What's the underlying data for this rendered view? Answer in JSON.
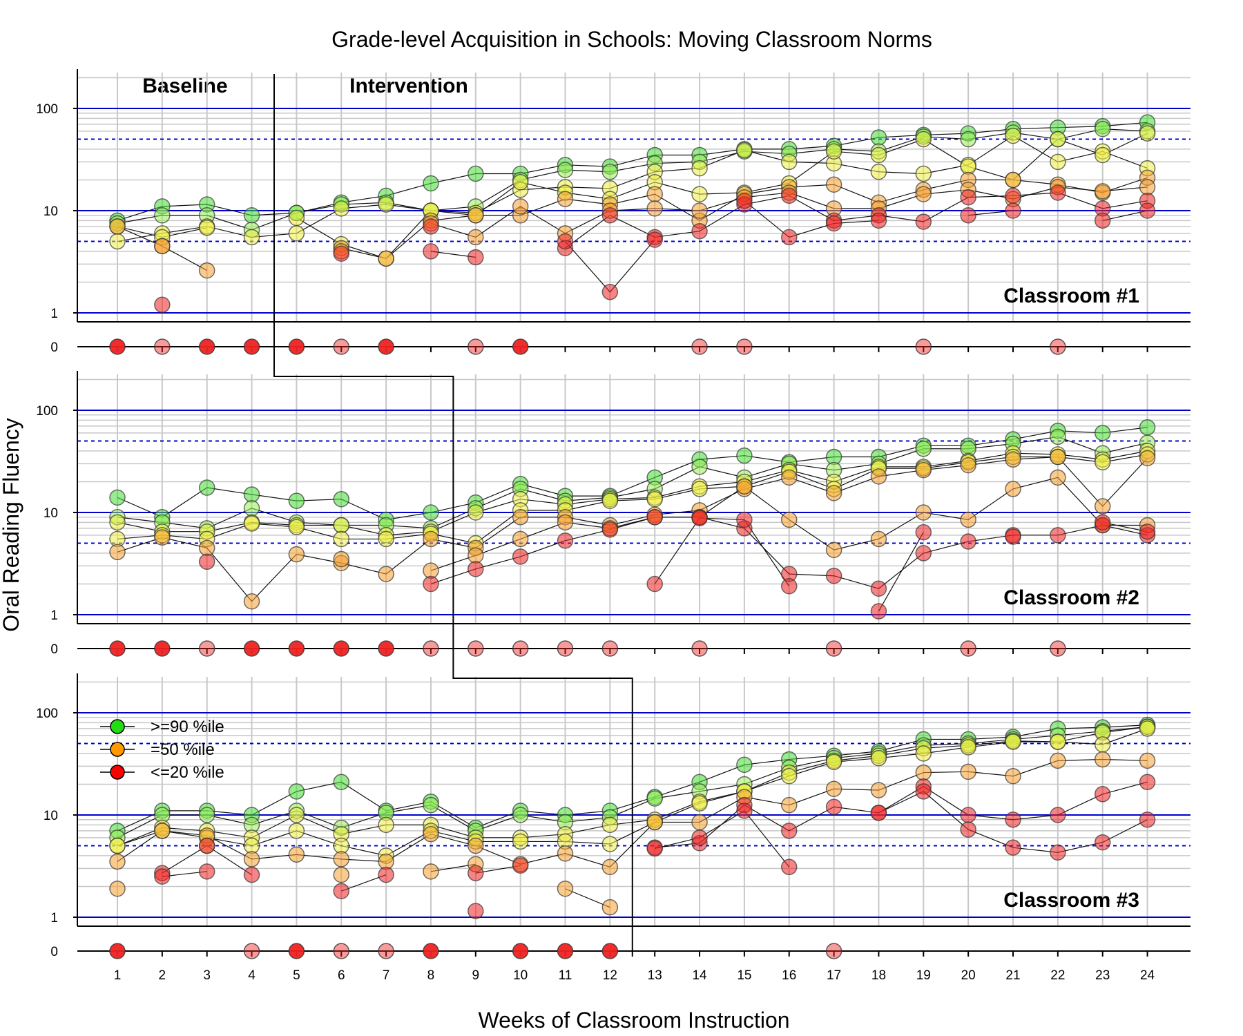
{
  "chart_data": {
    "type": "scatter",
    "title": "Grade-level Acquisition in Schools: Moving Classroom Norms",
    "xlabel": "Weeks of Classroom Instruction",
    "ylabel": "Oral Reading Fluency",
    "y_scale": "log",
    "yticks": [
      "100",
      "10",
      "1"
    ],
    "zero_label": "0",
    "x_ticks": [
      1,
      2,
      3,
      4,
      5,
      6,
      7,
      8,
      9,
      10,
      11,
      12,
      13,
      14,
      15,
      16,
      17,
      18,
      19,
      20,
      21,
      22,
      23,
      24
    ],
    "phase_labels": {
      "baseline": "Baseline",
      "intervention": "Intervention"
    },
    "reference_lines_solid": [
      1,
      10,
      100
    ],
    "reference_lines_dashed": [
      5,
      50
    ],
    "colors": {
      "green": "#44dd33",
      "lightgreen": "#99ee55",
      "yellow": "#eeee44",
      "orange": "#f5a030",
      "red": "#ee2222",
      "reference_line": "#0000cc",
      "grid": "#c8c8c8"
    },
    "legend": {
      "position": "upper-left of Classroom #3",
      "entries": [
        {
          "label": ">=90 %ile",
          "color": "#22dd11"
        },
        {
          "label": "=50 %ile",
          "color": "#ff9900"
        },
        {
          "label": "<=20 %ile",
          "color": "#ff0000"
        }
      ]
    },
    "panels": [
      {
        "label": "Classroom #1",
        "phase_change_after_week": 4.5,
        "series": [
          {
            "color": "green",
            "values": [
              8,
              11,
              11.5,
              9,
              9.5,
              12,
              14,
              18.5,
              23,
              23,
              28,
              27,
              35,
              35,
              40,
              40,
              43,
              52,
              55,
              57,
              63,
              65,
              67,
              73
            ]
          },
          {
            "color": "lightgreen",
            "values": [
              7.5,
              9,
              9,
              6.5,
              9.5,
              11.5,
              12,
              10,
              11,
              20,
              25,
              24,
              29,
              30,
              38,
              36,
              40,
              38,
              53,
              50,
              58,
              50,
              63,
              60
            ]
          },
          {
            "color": "yellow",
            "values": [
              5,
              6,
              7,
              5.5,
              6,
              10.5,
              11.5,
              10,
              9.5,
              16,
              17,
              16.5,
              24,
              26,
              39,
              30,
              29,
              24,
              23,
              28,
              54,
              30,
              38,
              26
            ]
          },
          {
            "color": "yellow",
            "values": [
              7,
              5.5,
              6.8,
              null,
              8.5,
              4.7,
              3.4,
              10,
              9,
              19,
              15,
              13,
              19,
              14.5,
              15,
              18.5,
              38,
              35,
              50,
              27,
              20,
              50,
              35,
              57
            ]
          },
          {
            "color": "orange",
            "values": [
              7,
              4.5,
              2.6,
              null,
              null,
              4.3,
              3.4,
              8,
              9,
              9,
              13,
              11.5,
              14.5,
              8,
              14.5,
              17,
              18,
              12,
              16,
              20,
              20,
              18,
              15,
              21
            ]
          },
          {
            "color": "orange",
            "values": [
              null,
              4.5,
              null,
              null,
              null,
              4,
              null,
              7.5,
              5.5,
              11,
              6,
              10,
              10.5,
              10,
              13.5,
              15,
              10.5,
              10.5,
              14.5,
              16,
              13,
              17,
              15.5,
              17
            ]
          },
          {
            "color": "red",
            "values": [
              null,
              1.2,
              null,
              null,
              null,
              3.8,
              null,
              4,
              3.5,
              null,
              4.3,
              9,
              5.5,
              6.3,
              11.5,
              14,
              8,
              9,
              7.8,
              13.5,
              14,
              15,
              10.5,
              12.5
            ]
          },
          {
            "color": "red",
            "values": [
              null,
              null,
              null,
              null,
              null,
              null,
              null,
              7,
              null,
              null,
              5,
              1.6,
              5.2,
              null,
              12.5,
              5.5,
              7.5,
              8,
              null,
              9,
              10,
              null,
              8,
              10
            ]
          }
        ],
        "zero_points": [
          {
            "week": 1,
            "strong": true
          },
          {
            "week": 2,
            "strong": false
          },
          {
            "week": 3,
            "strong": true
          },
          {
            "week": 4,
            "strong": true
          },
          {
            "week": 5,
            "strong": true
          },
          {
            "week": 6,
            "strong": false
          },
          {
            "week": 7,
            "strong": true
          },
          {
            "week": 9,
            "strong": false
          },
          {
            "week": 10,
            "strong": true
          },
          {
            "week": 14,
            "strong": false
          },
          {
            "week": 15,
            "strong": false
          },
          {
            "week": 19,
            "strong": false
          },
          {
            "week": 22,
            "strong": false
          }
        ]
      },
      {
        "label": "Classroom #2",
        "phase_change_after_week": 8.5,
        "series": [
          {
            "color": "green",
            "values": [
              14,
              9,
              17.5,
              15,
              13,
              13.5,
              8.5,
              10,
              12.5,
              19,
              14.5,
              14.5,
              22,
              33,
              36,
              31,
              35,
              35,
              45,
              45,
              52,
              63,
              60,
              68
            ]
          },
          {
            "color": "lightgreen",
            "values": [
              9,
              8,
              7,
              11,
              8,
              7.5,
              7.5,
              7,
              11,
              17,
              13,
              14,
              17,
              28,
              22,
              30,
              26,
              30,
              42,
              42,
              47,
              55,
              38,
              48
            ]
          },
          {
            "color": "yellow",
            "values": [
              8,
              6.5,
              6.5,
              8,
              7.5,
              7.5,
              6,
              6.5,
              10,
              13.5,
              12,
              13.5,
              14,
              18,
              20,
              26,
              20,
              28,
              28,
              32,
              38,
              37,
              33,
              40
            ]
          },
          {
            "color": "yellow",
            "values": [
              5.5,
              6,
              5.5,
              7.8,
              7.2,
              5.5,
              5.5,
              6.2,
              5,
              10.5,
              10.5,
              13,
              13.5,
              17,
              18,
              25,
              17,
              27,
              27,
              31,
              35,
              35,
              31,
              37
            ]
          },
          {
            "color": "orange",
            "values": [
              4.1,
              5.7,
              4.5,
              1.35,
              3.9,
              3.2,
              2.5,
              5.5,
              4.5,
              9,
              9,
              7.5,
              9.5,
              10.5,
              17,
              22,
              15.5,
              22.5,
              26,
              29,
              33,
              35,
              11.5,
              34
            ]
          },
          {
            "color": "orange",
            "values": [
              null,
              null,
              null,
              null,
              null,
              3.5,
              null,
              2.7,
              3.8,
              5.5,
              8,
              7,
              9,
              9,
              18,
              8.5,
              4.3,
              5.5,
              10,
              8.5,
              17,
              22,
              7.5,
              7.5
            ]
          },
          {
            "color": "red",
            "values": [
              null,
              null,
              3.3,
              null,
              null,
              null,
              null,
              2,
              2.8,
              3.7,
              5.3,
              6.8,
              9,
              9,
              7,
              2.5,
              2.4,
              1.8,
              4,
              5.2,
              6,
              6,
              7.5,
              6
            ]
          },
          {
            "color": "red",
            "values": [
              null,
              null,
              null,
              null,
              null,
              null,
              null,
              null,
              null,
              null,
              null,
              null,
              2,
              8.8,
              8.5,
              1.9,
              null,
              1.08,
              6.4,
              null,
              5.8,
              null,
              8,
              6.5
            ]
          }
        ],
        "zero_points": [
          {
            "week": 1,
            "strong": true
          },
          {
            "week": 2,
            "strong": true
          },
          {
            "week": 3,
            "strong": false
          },
          {
            "week": 4,
            "strong": true
          },
          {
            "week": 5,
            "strong": true
          },
          {
            "week": 6,
            "strong": true
          },
          {
            "week": 7,
            "strong": true
          },
          {
            "week": 8,
            "strong": false
          },
          {
            "week": 9,
            "strong": false
          },
          {
            "week": 10,
            "strong": false
          },
          {
            "week": 11,
            "strong": false
          },
          {
            "week": 12,
            "strong": false
          },
          {
            "week": 14,
            "strong": false
          },
          {
            "week": 17,
            "strong": false
          },
          {
            "week": 20,
            "strong": false
          },
          {
            "week": 22,
            "strong": false
          }
        ]
      },
      {
        "label": "Classroom #3",
        "phase_change_after_week": 12.5,
        "series": [
          {
            "color": "green",
            "values": [
              7,
              11,
              11,
              10,
              17,
              21,
              11,
              13.5,
              7.5,
              11,
              10,
              11,
              15,
              21,
              31,
              35,
              38,
              42,
              55,
              55,
              58,
              70,
              72,
              76
            ]
          },
          {
            "color": "lightgreen",
            "values": [
              6,
              10,
              10,
              8,
              11,
              7.5,
              10.5,
              12.5,
              7,
              10,
              8.5,
              9.5,
              14.5,
              17,
              20,
              29,
              36,
              40,
              48,
              50,
              55,
              60,
              66,
              73
            ]
          },
          {
            "color": "yellow",
            "values": [
              5,
              7.5,
              7,
              6,
              10,
              6.5,
              8,
              8,
              6,
              6,
              6.5,
              8,
              9,
              13.5,
              17,
              26,
              34,
              38,
              45,
              48,
              53,
              52,
              64,
              73
            ]
          },
          {
            "color": "yellow",
            "values": [
              5,
              7,
              6,
              5,
              7,
              5,
              4,
              7,
              5.5,
              5.5,
              5.5,
              5.2,
              8.5,
              13,
              17,
              24,
              33,
              36,
              40,
              46,
              52,
              52,
              49,
              70
            ]
          },
          {
            "color": "orange",
            "values": [
              3.5,
              7,
              6.3,
              3.7,
              4.1,
              3.7,
              3.5,
              6.5,
              5,
              3.3,
              4.2,
              3.1,
              8.5,
              8.5,
              15,
              12.5,
              18,
              17.5,
              26,
              26.5,
              24,
              34,
              35,
              34
            ]
          },
          {
            "color": "orange",
            "values": [
              1.9,
              null,
              5,
              null,
              null,
              2.6,
              null,
              2.8,
              3.3,
              null,
              1.9,
              1.25,
              null,
              null,
              null,
              null,
              null,
              null,
              null,
              null,
              null,
              null,
              null,
              null
            ]
          },
          {
            "color": "red",
            "values": [
              null,
              2.7,
              5,
              2.6,
              null,
              1.8,
              2.6,
              null,
              2.7,
              3.2,
              null,
              null,
              4.8,
              5.3,
              12.5,
              7,
              12,
              10.5,
              19,
              10,
              9,
              10,
              16,
              21
            ]
          },
          {
            "color": "red",
            "values": [
              null,
              2.5,
              2.8,
              null,
              null,
              null,
              null,
              null,
              1.15,
              null,
              null,
              null,
              4.7,
              6,
              11,
              3.1,
              null,
              10.5,
              17,
              7.2,
              4.8,
              4.3,
              5.4,
              9
            ]
          }
        ],
        "zero_points": [
          {
            "week": 1,
            "strong": true
          },
          {
            "week": 4,
            "strong": false
          },
          {
            "week": 5,
            "strong": true
          },
          {
            "week": 6,
            "strong": false
          },
          {
            "week": 7,
            "strong": false
          },
          {
            "week": 8,
            "strong": true
          },
          {
            "week": 10,
            "strong": true
          },
          {
            "week": 11,
            "strong": true
          },
          {
            "week": 12,
            "strong": true
          },
          {
            "week": 17,
            "strong": false
          }
        ]
      }
    ]
  }
}
